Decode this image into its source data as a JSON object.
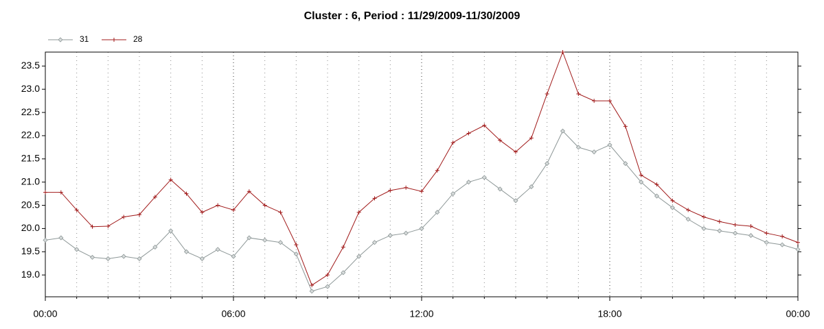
{
  "chart_data": {
    "type": "line",
    "title": "Cluster : 6, Period : 11/29/2009-11/30/2009",
    "x": [
      0,
      0.5,
      1,
      1.5,
      2,
      2.5,
      3,
      3.5,
      4,
      4.5,
      5,
      5.5,
      6,
      6.5,
      7,
      7.5,
      8,
      8.5,
      9,
      9.5,
      10,
      10.5,
      11,
      11.5,
      12,
      12.5,
      13,
      13.5,
      14,
      14.5,
      15,
      15.5,
      16,
      16.5,
      17,
      17.5,
      18,
      18.5,
      19,
      19.5,
      20,
      20.5,
      21,
      21.5,
      22,
      22.5,
      23,
      23.5,
      24
    ],
    "series": [
      {
        "name": "31",
        "color": "#8c9696",
        "marker": "diamond",
        "values": [
          19.75,
          19.8,
          19.55,
          19.38,
          19.35,
          19.4,
          19.35,
          19.6,
          19.95,
          19.5,
          19.35,
          19.55,
          19.4,
          19.8,
          19.75,
          19.7,
          19.45,
          18.65,
          18.75,
          19.05,
          19.4,
          19.7,
          19.85,
          19.9,
          20.0,
          20.35,
          20.75,
          21.0,
          21.1,
          20.85,
          20.6,
          20.9,
          21.4,
          22.1,
          21.75,
          21.65,
          21.8,
          21.4,
          21.0,
          20.7,
          20.45,
          20.2,
          20.0,
          19.95,
          19.9,
          19.85,
          19.7,
          19.65,
          19.55
        ]
      },
      {
        "name": "28",
        "color": "#a01818",
        "marker": "cross",
        "values": [
          20.78,
          20.78,
          20.4,
          20.04,
          20.05,
          20.25,
          20.3,
          20.68,
          21.05,
          20.75,
          20.35,
          20.5,
          20.4,
          20.8,
          20.5,
          20.35,
          19.65,
          18.78,
          19.0,
          19.6,
          20.35,
          20.65,
          20.82,
          20.88,
          20.8,
          21.25,
          21.85,
          22.05,
          22.22,
          21.9,
          21.65,
          21.95,
          22.9,
          23.8,
          22.9,
          22.75,
          22.75,
          22.2,
          21.15,
          20.95,
          20.6,
          20.4,
          20.25,
          20.15,
          20.08,
          20.05,
          19.9,
          19.83,
          19.7
        ]
      }
    ],
    "xlim": [
      0,
      24
    ],
    "xticks": [
      {
        "value": 0,
        "label": "00:00"
      },
      {
        "value": 6,
        "label": "06:00"
      },
      {
        "value": 12,
        "label": "12:00"
      },
      {
        "value": 18,
        "label": "18:00"
      },
      {
        "value": 24,
        "label": "00:00"
      }
    ],
    "ylim": [
      18.53,
      23.8
    ],
    "yticks": [
      {
        "value": 19,
        "label": "19.0"
      },
      19.5,
      {
        "value": 20,
        "label": "20.0"
      },
      20.5,
      {
        "value": 21,
        "label": "21.0"
      },
      21.5,
      {
        "value": 22,
        "label": "22.0"
      },
      22.5,
      {
        "value": 23,
        "label": "23.0"
      },
      23.5
    ],
    "grid": true,
    "legend": "top-left"
  }
}
